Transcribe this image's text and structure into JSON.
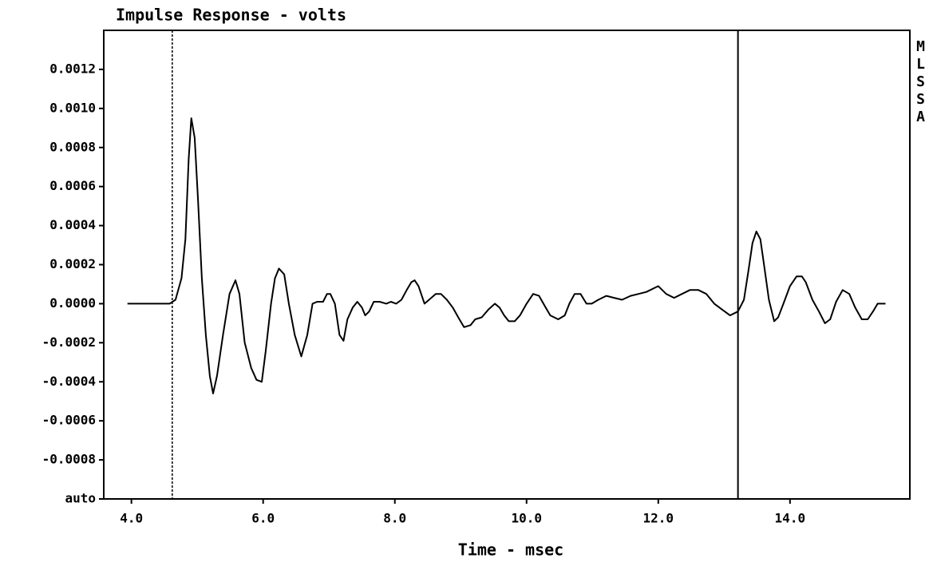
{
  "chart_data": {
    "type": "line",
    "title": "Impulse Response - volts",
    "side_label": "MLSSA",
    "xlabel": "Time - msec",
    "xlim": [
      3.58,
      15.82
    ],
    "ylim": [
      -0.001,
      0.0014
    ],
    "xticks": [
      {
        "value": 4,
        "label": "4.0"
      },
      {
        "value": 6,
        "label": "6.0"
      },
      {
        "value": 8,
        "label": "8.0"
      },
      {
        "value": 10,
        "label": "10.0"
      },
      {
        "value": 12,
        "label": "12.0"
      },
      {
        "value": 14,
        "label": "14.0"
      }
    ],
    "yticks": [
      {
        "value": -0.001,
        "label": "auto"
      },
      {
        "value": -0.0008,
        "label": "-0.0008"
      },
      {
        "value": -0.0006,
        "label": "-0.0006"
      },
      {
        "value": -0.0004,
        "label": "-0.0004"
      },
      {
        "value": -0.0002,
        "label": "-0.0002"
      },
      {
        "value": 0,
        "label": "0.0000"
      },
      {
        "value": 0.0002,
        "label": "0.0002"
      },
      {
        "value": 0.0004,
        "label": "0.0004"
      },
      {
        "value": 0.0006,
        "label": "0.0006"
      },
      {
        "value": 0.0008,
        "label": "0.0008"
      },
      {
        "value": 0.001,
        "label": "0.0010"
      },
      {
        "value": 0.0012,
        "label": "0.0012"
      }
    ],
    "grid": false,
    "color": "#000000",
    "cursors": [
      {
        "x": 4.62,
        "style": "dashed"
      },
      {
        "x": 13.21,
        "style": "solid"
      }
    ],
    "x": [
      3.94,
      4.58,
      4.67,
      4.76,
      4.82,
      4.87,
      4.91,
      4.96,
      5.01,
      5.07,
      5.13,
      5.19,
      5.24,
      5.3,
      5.39,
      5.49,
      5.58,
      5.64,
      5.72,
      5.82,
      5.9,
      5.98,
      6.04,
      6.12,
      6.18,
      6.24,
      6.32,
      6.39,
      6.48,
      6.58,
      6.67,
      6.75,
      6.82,
      6.91,
      6.97,
      7.02,
      7.09,
      7.16,
      7.22,
      7.28,
      7.36,
      7.43,
      7.5,
      7.55,
      7.61,
      7.68,
      7.77,
      7.87,
      7.94,
      8.02,
      8.1,
      8.18,
      8.25,
      8.3,
      8.36,
      8.45,
      8.52,
      8.62,
      8.7,
      8.79,
      8.88,
      8.98,
      9.05,
      9.15,
      9.22,
      9.32,
      9.42,
      9.52,
      9.59,
      9.66,
      9.73,
      9.82,
      9.9,
      10.0,
      10.1,
      10.19,
      10.29,
      10.36,
      10.48,
      10.58,
      10.65,
      10.73,
      10.82,
      10.91,
      10.99,
      11.09,
      11.21,
      11.33,
      11.45,
      11.58,
      11.7,
      11.82,
      12.0,
      12.12,
      12.24,
      12.36,
      12.48,
      12.61,
      12.73,
      12.85,
      12.97,
      13.09,
      13.21,
      13.3,
      13.37,
      13.43,
      13.49,
      13.55,
      13.61,
      13.68,
      13.76,
      13.82,
      13.9,
      14.0,
      14.1,
      14.18,
      14.24,
      14.34,
      14.44,
      14.53,
      14.61,
      14.7,
      14.8,
      14.9,
      14.99,
      15.09,
      15.18,
      15.26,
      15.33,
      15.45
    ],
    "values": [
      0,
      0,
      2e-05,
      0.00013,
      0.00033,
      0.00074,
      0.00095,
      0.00085,
      0.00054,
      0.00013,
      -0.00016,
      -0.00037,
      -0.00046,
      -0.00037,
      -0.00016,
      5e-05,
      0.00012,
      5e-05,
      -0.0002,
      -0.00033,
      -0.00039,
      -0.0004,
      -0.00024,
      0,
      0.00013,
      0.00018,
      0.00015,
      0,
      -0.00016,
      -0.00027,
      -0.00016,
      0,
      1e-05,
      1e-05,
      5e-05,
      5e-05,
      0,
      -0.00016,
      -0.00019,
      -8e-05,
      -2e-05,
      1e-05,
      -2e-05,
      -6e-05,
      -4e-05,
      1e-05,
      1e-05,
      0,
      1e-05,
      0,
      2e-05,
      7e-05,
      0.00011,
      0.00012,
      9e-05,
      0,
      2e-05,
      5e-05,
      5e-05,
      2e-05,
      -2e-05,
      -8e-05,
      -0.00012,
      -0.00011,
      -8e-05,
      -7e-05,
      -3e-05,
      0,
      -2e-05,
      -6e-05,
      -9e-05,
      -9e-05,
      -6e-05,
      0,
      5e-05,
      4e-05,
      -2e-05,
      -6e-05,
      -8e-05,
      -6e-05,
      0,
      5e-05,
      5e-05,
      0,
      0,
      2e-05,
      4e-05,
      3e-05,
      2e-05,
      4e-05,
      5e-05,
      6e-05,
      9e-05,
      5e-05,
      3e-05,
      5e-05,
      7e-05,
      7e-05,
      5e-05,
      0,
      -3e-05,
      -6e-05,
      -4e-05,
      2e-05,
      0.00017,
      0.00031,
      0.00037,
      0.00033,
      0.00019,
      2e-05,
      -9e-05,
      -7e-05,
      0,
      9e-05,
      0.00014,
      0.00014,
      0.00011,
      2e-05,
      -4e-05,
      -0.0001,
      -8e-05,
      1e-05,
      7e-05,
      5e-05,
      -2e-05,
      -8e-05,
      -8e-05,
      -4e-05,
      0,
      0
    ]
  }
}
